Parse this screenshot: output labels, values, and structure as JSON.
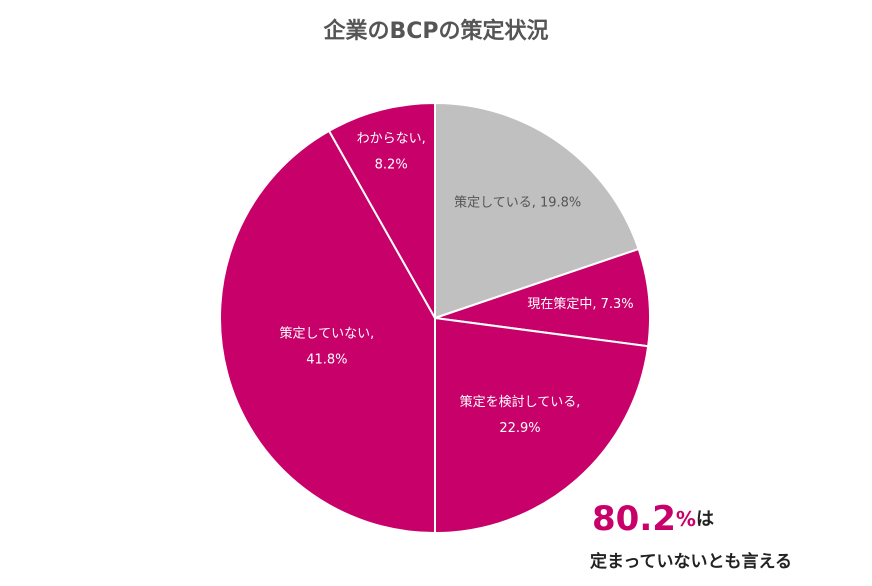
{
  "chart_data": {
    "type": "pie",
    "title": "企業のBCPの策定状況",
    "values": [
      19.8,
      7.3,
      22.9,
      41.8,
      8.2
    ],
    "value_labels": [
      [
        "策定している, 19.8%"
      ],
      [
        "現在策定中, 7.3%"
      ],
      [
        "策定を検討している,",
        "22.9%"
      ],
      [
        "策定していない,",
        "41.8%"
      ],
      [
        "わからない,",
        "8.2%"
      ]
    ],
    "colors": [
      "#c0c0c0",
      "#c8006a",
      "#c8006a",
      "#c8006a",
      "#c8006a"
    ],
    "annotation": {
      "number": 80.2,
      "unit": "%",
      "suffix": "は",
      "text": "定まっていないとも言える"
    }
  }
}
